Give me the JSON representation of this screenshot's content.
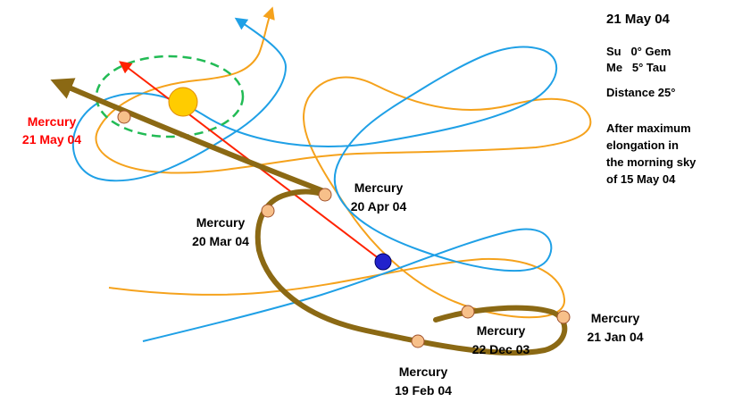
{
  "info": {
    "date": "21 May 04",
    "sun": "Su   0° Gem",
    "mercury": "Me   5° Tau",
    "distance": "Distance 25°",
    "note_lines": [
      "After maximum",
      "elongation in",
      "the morning sky",
      "of 15 May 04"
    ]
  },
  "labels": {
    "may": [
      "Mercury",
      "21 May 04"
    ],
    "apr": [
      "Mercury",
      "20 Apr 04"
    ],
    "mar": [
      "Mercury",
      "20 Mar 04"
    ],
    "dec": [
      "Mercury",
      "22 Dec 03"
    ],
    "jan": [
      "Mercury",
      "21 Jan 04"
    ],
    "feb": [
      "Mercury",
      "19 Feb 04"
    ]
  },
  "colors": {
    "orbit_orange": "#f5a21c",
    "orbit_blue": "#1fa0e6",
    "mercury_path": "#8b6914",
    "sight_line": "#ff2200",
    "sun": "#ffcc00",
    "earth": "#2222cc",
    "mercury_marker": "#f7c08a",
    "sun_orbit": "#22bb55",
    "label_highlight": "#ff0000"
  }
}
